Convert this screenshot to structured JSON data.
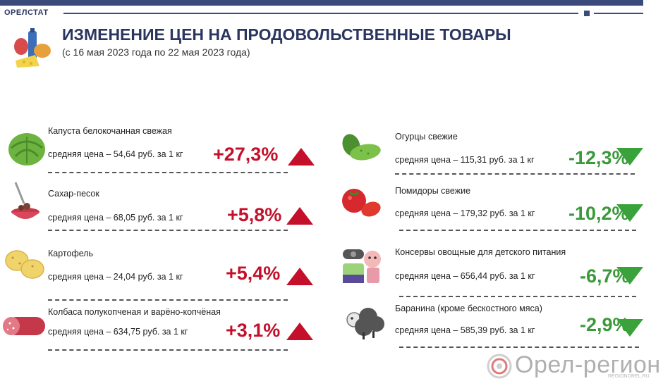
{
  "header": {
    "brand": "ОРЕЛСТАТ",
    "title": "ИЗМЕНЕНИЕ ЦЕН НА ПРОДОВОЛЬСТВЕННЫЕ ТОВАРЫ",
    "subtitle": "(с 16 мая 2023 года по 22 мая 2023 года)"
  },
  "left_items": [
    {
      "name": "Капуста белокочанная свежая",
      "price": "средняя цена – 54,64 руб. за 1 кг",
      "change": "+27,3%",
      "direction": "up",
      "icon": "cabbage-icon"
    },
    {
      "name": "Сахар-песок",
      "price": "средняя цена – 68,05 руб. за 1 кг",
      "change": "+5,8%",
      "direction": "up",
      "icon": "sugar-icon"
    },
    {
      "name": "Картофель",
      "price": "средняя цена – 24,04 руб. за 1 кг",
      "change": "+5,4%",
      "direction": "up",
      "icon": "potato-icon"
    },
    {
      "name": "Колбаса полукопченая и варёно-копчёная",
      "price": "средняя цена – 634,75 руб. за 1 кг",
      "change": "+3,1%",
      "direction": "up",
      "icon": "sausage-icon"
    }
  ],
  "right_items": [
    {
      "name": "Огурцы свежие",
      "price": "средняя цена – 115,31 руб. за 1 кг",
      "change": "-12,3%",
      "direction": "down",
      "icon": "cucumber-icon"
    },
    {
      "name": "Помидоры свежие",
      "price": "средняя цена –  179,32 руб. за  1 кг",
      "change": "-10,2%",
      "direction": "down",
      "icon": "tomato-icon"
    },
    {
      "name": "Консервы овощные для детского питания",
      "price": "средняя цена – 656,44 руб. за 1 кг",
      "change": "-6,7%",
      "direction": "down",
      "icon": "baby-food-icon"
    },
    {
      "name": "Баранина (кроме бескостного мяса)",
      "price": "средняя цена – 585,39 руб. за 1 кг",
      "change": "-2,9%",
      "direction": "down",
      "icon": "sheep-icon"
    }
  ],
  "footer": {
    "logo_text": "Орел-регион",
    "logo_sub": "REGIONOREL.RU"
  },
  "colors": {
    "navy": "#2a3560",
    "up": "#c4102a",
    "down": "#3a9a3a"
  }
}
